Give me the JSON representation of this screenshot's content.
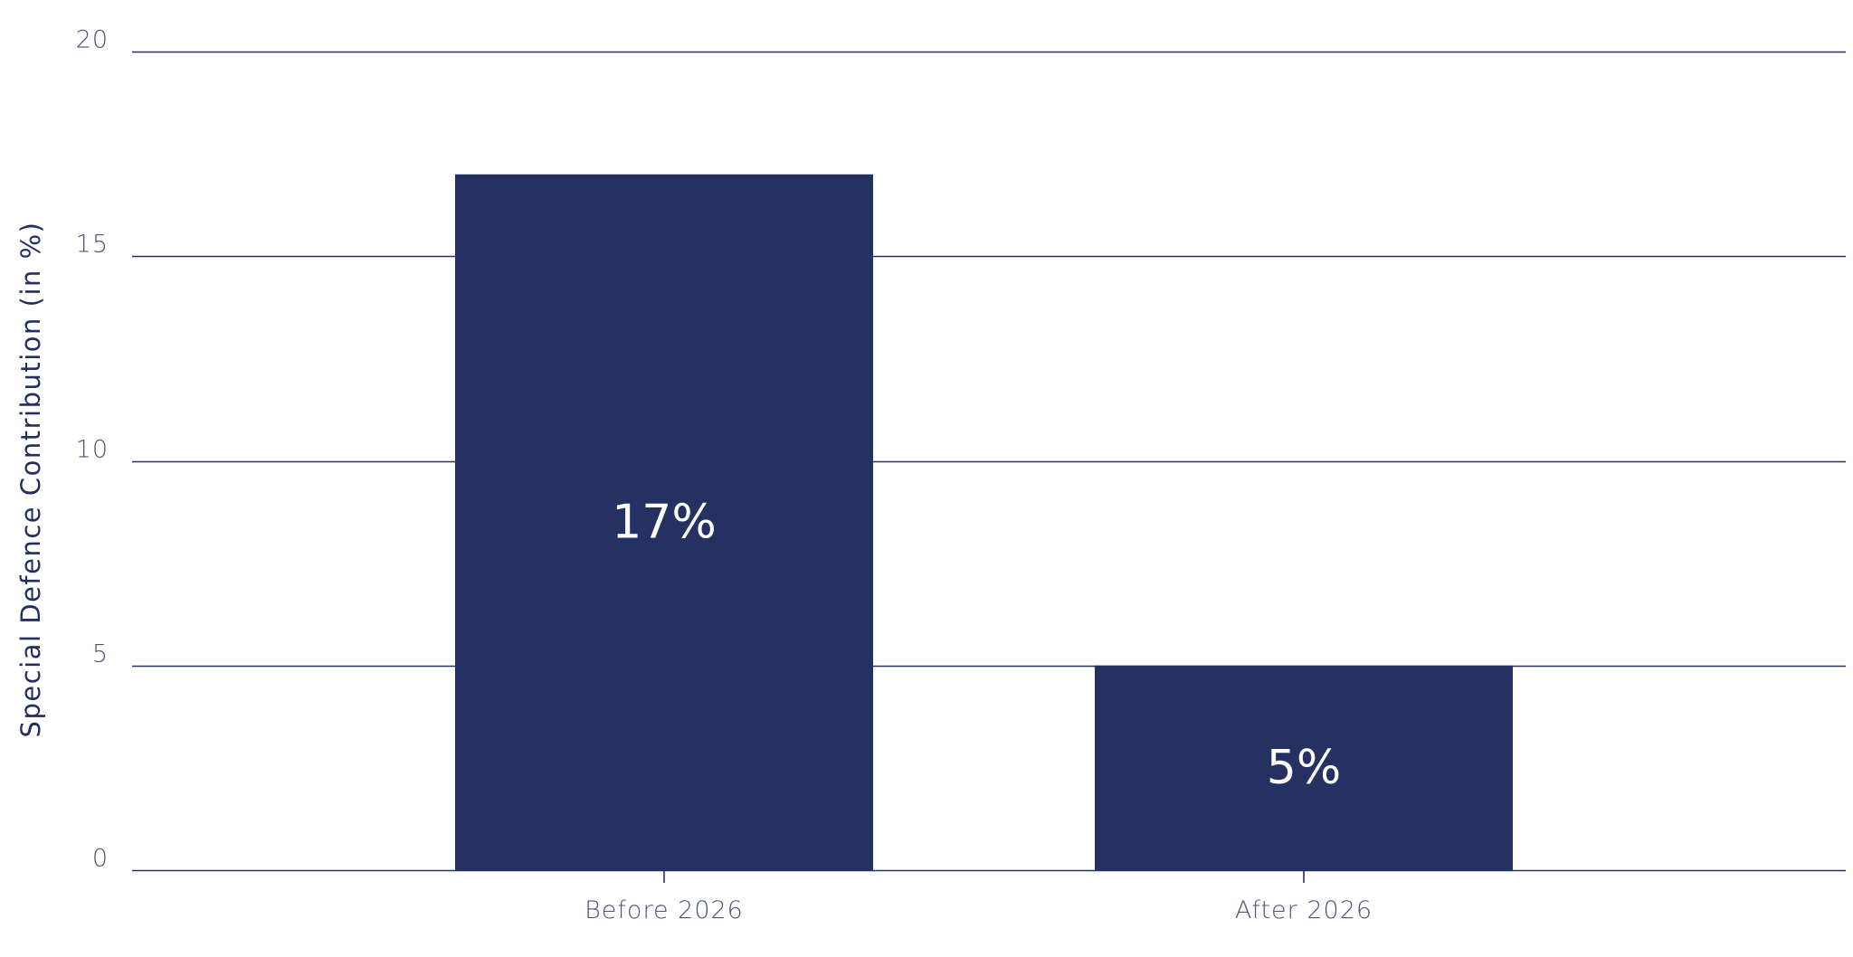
{
  "chart_data": {
    "type": "bar",
    "title": "",
    "xlabel": "",
    "ylabel": "Special Defence Contribution (in %)",
    "categories": [
      "Before 2026",
      "After 2026"
    ],
    "values": [
      17,
      5
    ],
    "data_labels": [
      "17%",
      "5%"
    ],
    "ylim": [
      0,
      20
    ],
    "yticks": [
      0,
      5,
      10,
      15,
      20
    ],
    "ytick_labels": [
      "0",
      "5",
      "10",
      "15",
      "20"
    ],
    "grid": true,
    "legend": "none",
    "bar_color": "#243162",
    "grid_color": "#243162",
    "label_color": "#ffffff"
  }
}
